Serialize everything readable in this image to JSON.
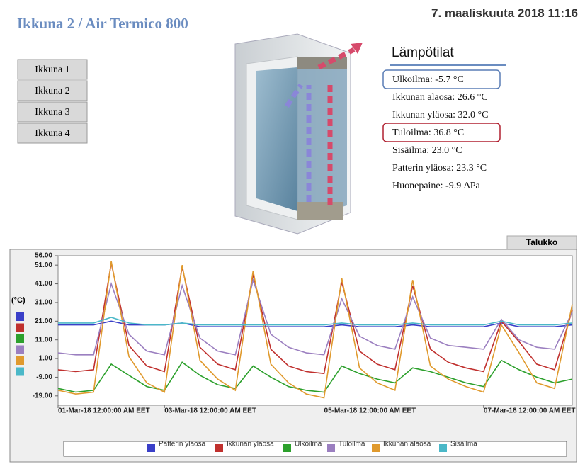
{
  "header": {
    "title": "Ikkuna 2 / Air Termico 800",
    "datetime": "7. maaliskuuta 2018 11:16"
  },
  "nav": [
    "Ikkuna 1",
    "Ikkuna 2",
    "Ikkuna 3",
    "Ikkuna 4"
  ],
  "readings": {
    "title": "Lämpötilat",
    "items": [
      "Ulkoilma: -5.7 °C",
      "Ikkunan alaosa: 26.6 °C",
      "Ikkunan yläosa: 32.0 °C",
      "Tuloilma: 36.8 °C",
      "Sisäilma: 23.0 °C",
      "Patterin yläosa: 23.3 °C",
      "Huonepaine: -9.9 ΔPa"
    ]
  },
  "tab": "Talukko",
  "chart_data": {
    "type": "line",
    "y_label": "(°C)",
    "categories": [
      "01-Mar-18 12:00:00 AM EET",
      null,
      null,
      null,
      null,
      null,
      "03-Mar-18 12:00:00 AM EET",
      null,
      null,
      null,
      null,
      null,
      null,
      null,
      null,
      "05-Mar-18 12:00:00 AM EET",
      null,
      null,
      null,
      null,
      null,
      null,
      null,
      null,
      "07-Mar-18 12:00:00 AM EET",
      null,
      null,
      null,
      null,
      null
    ],
    "ylim": [
      -24,
      56
    ],
    "yticks": [
      {
        "value": 56,
        "label": "56.00"
      },
      {
        "value": 51,
        "label": "51.00"
      },
      {
        "value": 41,
        "label": "41.00"
      },
      {
        "value": 31,
        "label": "31.00"
      },
      {
        "value": 21,
        "label": "21.00"
      },
      {
        "value": 11,
        "label": "11.00"
      },
      {
        "value": 1,
        "label": "1.00"
      },
      {
        "value": -9,
        "label": "-9.00"
      },
      {
        "value": -19,
        "label": "-19.00"
      }
    ],
    "grid": false,
    "series": [
      {
        "name": "Patterin yläosa",
        "color": "#3a3fc8",
        "values": [
          19,
          19,
          19,
          21,
          19,
          19,
          19,
          20,
          18,
          18,
          18,
          18,
          18,
          18,
          18,
          18,
          19,
          18,
          18,
          18,
          19,
          18,
          18,
          18,
          18,
          20,
          18,
          18,
          18,
          19
        ]
      },
      {
        "name": "Ikkunan yläosa",
        "color": "#c0302e",
        "values": [
          -5,
          -6,
          -5,
          52,
          8,
          -3,
          -6,
          50,
          7,
          -2,
          -5,
          46,
          6,
          -3,
          -6,
          -7,
          42,
          5,
          -2,
          -5,
          40,
          6,
          -1,
          -4,
          -6,
          21,
          10,
          -2,
          -5,
          27
        ]
      },
      {
        "name": "Ulkoilma",
        "color": "#2ca02c",
        "values": [
          -15,
          -17,
          -16,
          -2,
          -8,
          -14,
          -16,
          -1,
          -8,
          -13,
          -15,
          -3,
          -9,
          -14,
          -16,
          -17,
          -3,
          -7,
          -10,
          -12,
          -4,
          -6,
          -9,
          -12,
          -14,
          0,
          -5,
          -9,
          -12,
          -10
        ]
      },
      {
        "name": "Tuloilma",
        "color": "#9b7fc0",
        "values": [
          4,
          3,
          3,
          41,
          14,
          5,
          3,
          40,
          12,
          5,
          3,
          43,
          14,
          7,
          4,
          3,
          33,
          13,
          8,
          6,
          34,
          12,
          8,
          7,
          6,
          22,
          11,
          7,
          6,
          26
        ]
      },
      {
        "name": "Ikkunan alaosa",
        "color": "#e09a2e",
        "values": [
          -16,
          -18,
          -17,
          53,
          2,
          -12,
          -17,
          51,
          0,
          -10,
          -16,
          48,
          -2,
          -12,
          -18,
          -20,
          44,
          -4,
          -12,
          -16,
          43,
          -3,
          -10,
          -14,
          -17,
          19,
          4,
          -12,
          -15,
          30
        ]
      },
      {
        "name": "Sisäilma",
        "color": "#4bb8c8",
        "values": [
          20,
          20,
          20,
          23,
          20,
          19,
          19,
          20,
          19,
          19,
          19,
          19,
          19,
          19,
          19,
          19,
          20,
          19,
          19,
          19,
          20,
          19,
          19,
          19,
          19,
          21,
          19,
          19,
          19,
          20
        ]
      }
    ]
  }
}
